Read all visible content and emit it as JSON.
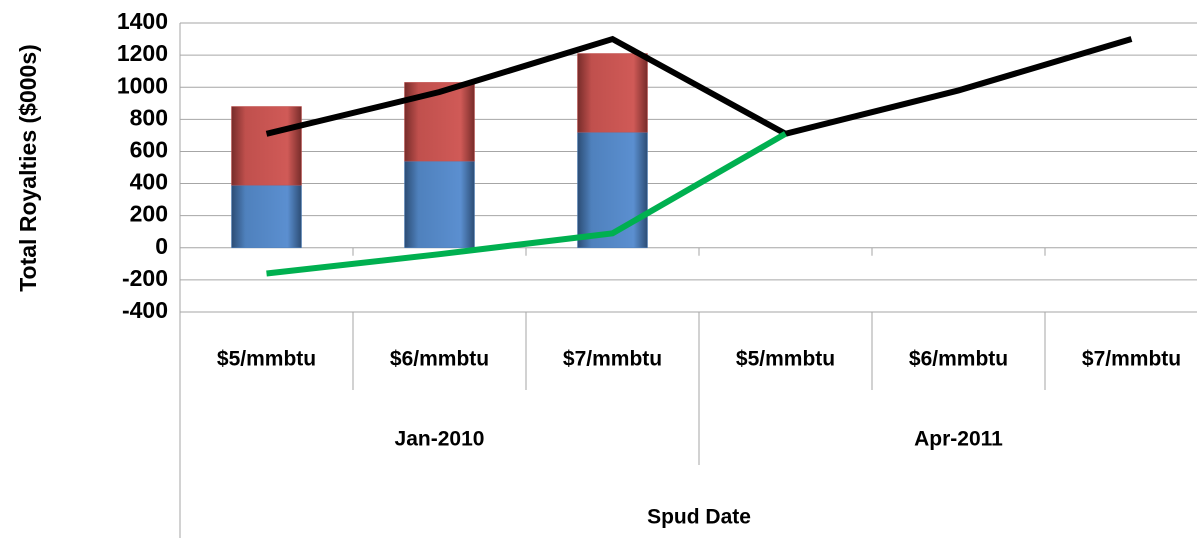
{
  "chart_data": {
    "type": "bar",
    "stacked": true,
    "y_label": "Total Royalties ($000s)",
    "x_label": "Spud Date",
    "categories": [
      "$5/mmbtu",
      "$6/mmbtu",
      "$7/mmbtu",
      "$5/mmbtu",
      "$6/mmbtu",
      "$7/mmbtu"
    ],
    "group_labels": [
      "Jan-2010",
      "Apr-2011"
    ],
    "series": [
      {
        "type": "bar",
        "color": "#4f81bd",
        "values": [
          390,
          540,
          720,
          null,
          null,
          null
        ]
      },
      {
        "type": "bar",
        "color": "#c0504d",
        "values": [
          490,
          490,
          490,
          null,
          null,
          null
        ]
      },
      {
        "type": "line",
        "color": "#000000",
        "values": [
          710,
          970,
          1300,
          710,
          980,
          1300
        ]
      },
      {
        "type": "line",
        "color": "#00b050",
        "values": [
          -160,
          -40,
          90,
          710,
          null,
          null
        ]
      }
    ],
    "ylim": [
      -400,
      1400
    ],
    "yticks": [
      -400,
      -200,
      0,
      200,
      400,
      600,
      800,
      1000,
      1200,
      1400
    ],
    "grid": true
  }
}
